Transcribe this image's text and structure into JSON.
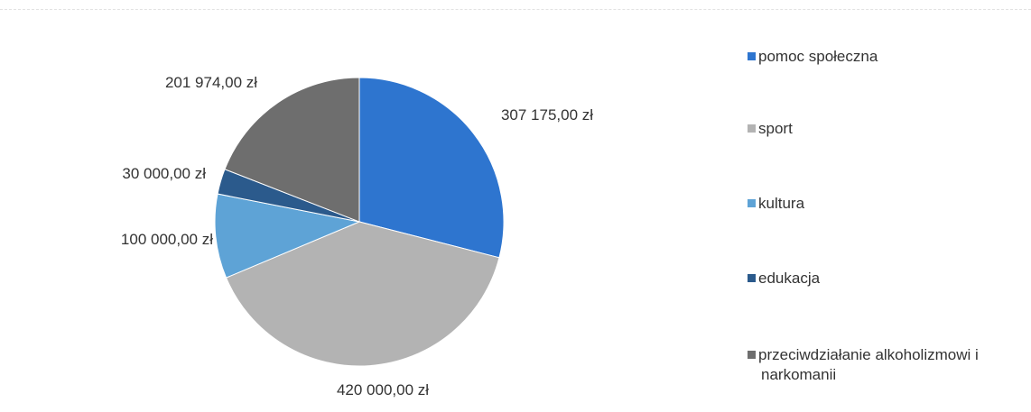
{
  "chart_data": {
    "type": "pie",
    "slices": [
      {
        "label": "pomoc społeczna",
        "value": 307175.0,
        "value_label": "307 175,00 zł",
        "color": "#2e75cf"
      },
      {
        "label": "sport",
        "value": 420000.0,
        "value_label": "420 000,00 zł",
        "color": "#b3b3b3"
      },
      {
        "label": "kultura",
        "value": 100000.0,
        "value_label": "100 000,00 zł",
        "color": "#5ea3d6"
      },
      {
        "label": "edukacja",
        "value": 30000.0,
        "value_label": "30 000,00 zł",
        "color": "#2b5a8c"
      },
      {
        "label": "przeciwdziałanie alkoholizmowi i narkomanii",
        "value": 201974.0,
        "value_label": "201 974,00 zł",
        "color": "#6e6e6e"
      }
    ],
    "start": "12 o'clock",
    "direction": "clockwise",
    "legend_position": "right"
  }
}
